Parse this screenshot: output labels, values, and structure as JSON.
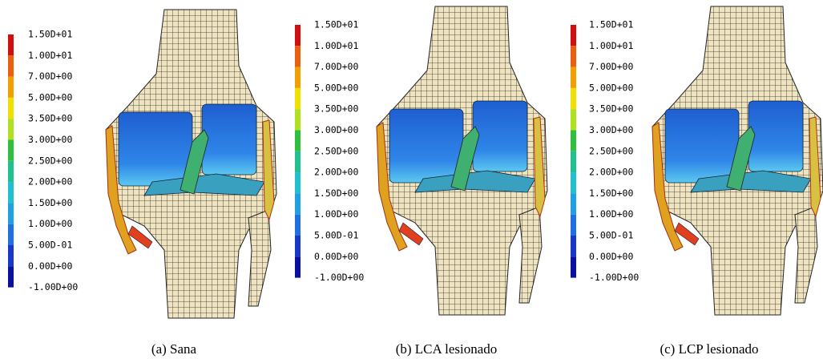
{
  "panels": [
    {
      "legend_labels": [
        "1.50D+01",
        "1.00D+01",
        "7.00D+00",
        "5.00D+00",
        "3.50D+00",
        "3.00D+00",
        "2.50D+00",
        "2.00D+00",
        "1.50D+00",
        "1.00D+00",
        "5.00D-01",
        "0.00D+00",
        "-1.00D+00"
      ],
      "caption": "(a) Sana"
    },
    {
      "legend_labels": [
        "1.50D+01",
        "1.00D+01",
        "7.00D+00",
        "5.00D+00",
        "3.50D+00",
        "3.00D+00",
        "2.50D+00",
        "2.00D+00",
        "1.50D+00",
        "1.00D+00",
        "5.00D-01",
        "0.00D+00",
        "-1.00D+00"
      ],
      "caption": "(b) LCA lesionado"
    },
    {
      "legend_labels": [
        "1.50D+01",
        "1.00D+01",
        "7.00D+00",
        "5.00D+00",
        "3.50D+00",
        "3.00D+00",
        "2.50D+00",
        "2.00D+00",
        "1.50D+00",
        "1.00D+00",
        "5.00D-01",
        "0.00D+00",
        "-1.00D+00"
      ],
      "caption": "(c) LCP lesionado"
    }
  ]
}
